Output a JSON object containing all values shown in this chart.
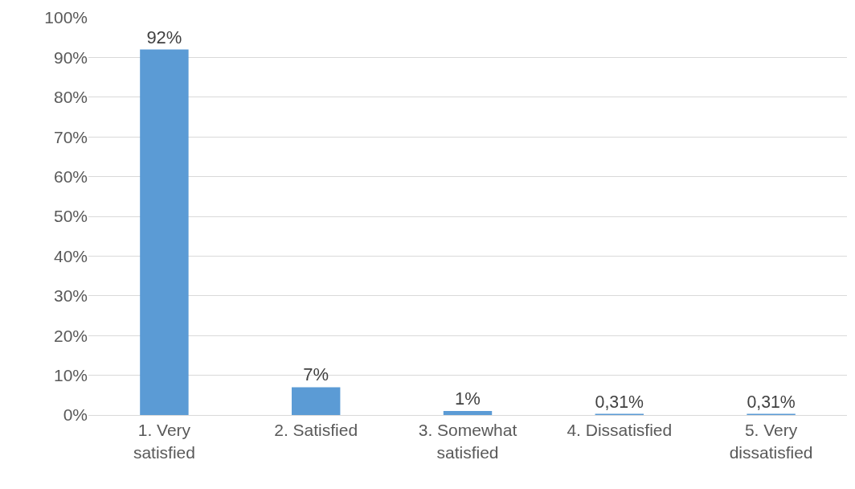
{
  "chart_data": {
    "type": "bar",
    "categories": [
      "1. Very satisfied",
      "2. Satisfied",
      "3. Somewhat satisfied",
      "4. Dissatisfied",
      "5. Very dissatisfied"
    ],
    "values": [
      92,
      7,
      1,
      0.31,
      0.31
    ],
    "value_labels": [
      "92%",
      "7%",
      "1%",
      "0,31%",
      "0,31%"
    ],
    "color": "#5b9bd5",
    "ylim": [
      0,
      100
    ],
    "yticks": [
      {
        "value": 0,
        "label": "0%"
      },
      {
        "value": 10,
        "label": "10%"
      },
      {
        "value": 20,
        "label": "20%"
      },
      {
        "value": 30,
        "label": "30%"
      },
      {
        "value": 40,
        "label": "40%"
      },
      {
        "value": 50,
        "label": "50%"
      },
      {
        "value": 60,
        "label": "60%"
      },
      {
        "value": 70,
        "label": "70%"
      },
      {
        "value": 80,
        "label": "80%"
      },
      {
        "value": 90,
        "label": "90%"
      },
      {
        "value": 100,
        "label": "100%"
      }
    ],
    "grid": "y"
  }
}
